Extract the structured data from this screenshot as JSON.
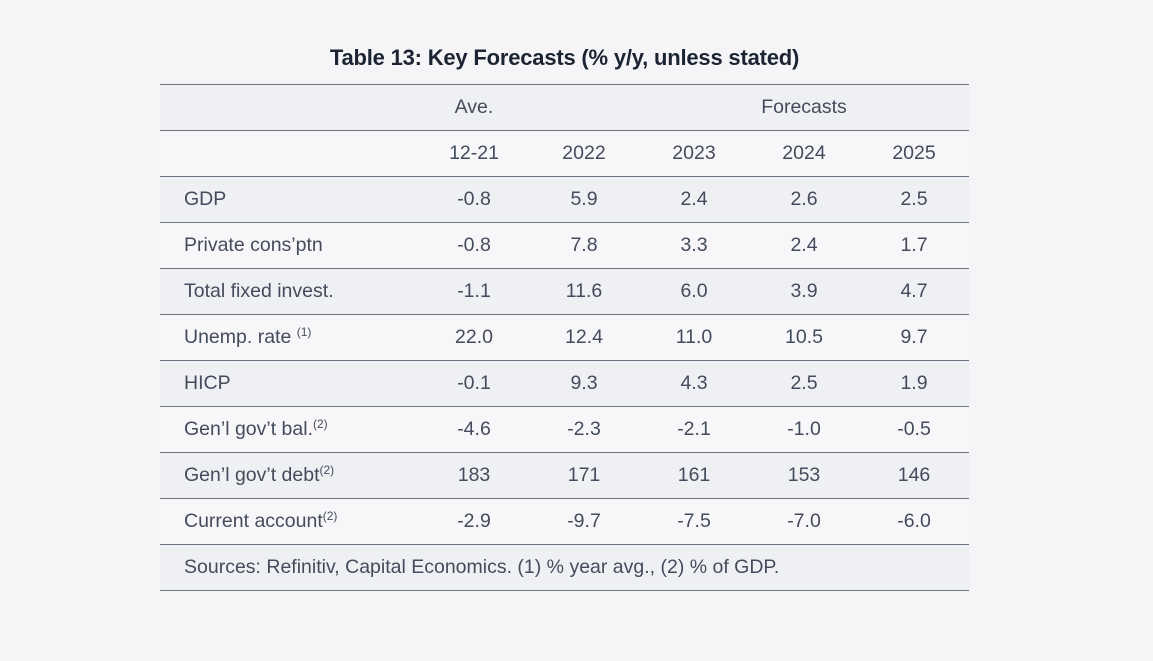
{
  "table": {
    "title": "Table 13: Key Forecasts (% y/y, unless stated)",
    "group_headers": {
      "ave": "Ave.",
      "forecasts": "Forecasts"
    },
    "year_headers": [
      "12-21",
      "2022",
      "2023",
      "2024",
      "2025"
    ],
    "rows": [
      {
        "label": "GDP",
        "sup": "",
        "values": [
          "-0.8",
          "5.9",
          "2.4",
          "2.6",
          "2.5"
        ]
      },
      {
        "label": "Private cons’ptn",
        "sup": "",
        "values": [
          "-0.8",
          "7.8",
          "3.3",
          "2.4",
          "1.7"
        ]
      },
      {
        "label": "Total fixed invest.",
        "sup": "",
        "values": [
          "-1.1",
          "11.6",
          "6.0",
          "3.9",
          "4.7"
        ]
      },
      {
        "label": "Unemp. rate ",
        "sup": "(1)",
        "values": [
          "22.0",
          "12.4",
          "11.0",
          "10.5",
          "9.7"
        ]
      },
      {
        "label": "HICP",
        "sup": "",
        "values": [
          "-0.1",
          "9.3",
          "4.3",
          "2.5",
          "1.9"
        ]
      },
      {
        "label": "Gen’l gov’t bal.",
        "sup": "(2)",
        "values": [
          "-4.6",
          "-2.3",
          "-2.1",
          "-1.0",
          "-0.5"
        ]
      },
      {
        "label": "Gen’l gov’t debt",
        "sup": "(2)",
        "values": [
          "183",
          "171",
          "161",
          "153",
          "146"
        ]
      },
      {
        "label": "Current account",
        "sup": "(2)",
        "values": [
          "-2.9",
          "-9.7",
          "-7.5",
          "-7.0",
          "-6.0"
        ]
      }
    ],
    "sources": "Sources: Refinitiv, Capital Economics. (1) % year avg., (2) % of GDP."
  },
  "colors": {
    "page_bg": "#f5f5f7",
    "row_shaded": "#eff0f3",
    "row_light": "#f7f7f9",
    "rule_line": "#6e7282",
    "body_text": "#444b5c",
    "title_text": "#1c2433"
  },
  "chart_data": {
    "type": "table",
    "title": "Table 13: Key Forecasts (% y/y, unless stated)",
    "column_groups": [
      {
        "label": "Ave.",
        "columns": [
          "12-21"
        ]
      },
      {
        "label": "Forecasts",
        "columns": [
          "2023",
          "2024",
          "2025"
        ]
      }
    ],
    "columns": [
      "",
      "12-21",
      "2022",
      "2023",
      "2024",
      "2025"
    ],
    "rows": [
      [
        "GDP",
        -0.8,
        5.9,
        2.4,
        2.6,
        2.5
      ],
      [
        "Private cons'ptn",
        -0.8,
        7.8,
        3.3,
        2.4,
        1.7
      ],
      [
        "Total fixed invest.",
        -1.1,
        11.6,
        6.0,
        3.9,
        4.7
      ],
      [
        "Unemp. rate (1)",
        22.0,
        12.4,
        11.0,
        10.5,
        9.7
      ],
      [
        "HICP",
        -0.1,
        9.3,
        4.3,
        2.5,
        1.9
      ],
      [
        "Gen'l gov't bal.(2)",
        -4.6,
        -2.3,
        -2.1,
        -1.0,
        -0.5
      ],
      [
        "Gen'l gov't debt(2)",
        183,
        171,
        161,
        153,
        146
      ],
      [
        "Current account(2)",
        -2.9,
        -9.7,
        -7.5,
        -7.0,
        -6.0
      ]
    ],
    "footnote": "Sources: Refinitiv, Capital Economics. (1) % year avg., (2) % of GDP."
  }
}
